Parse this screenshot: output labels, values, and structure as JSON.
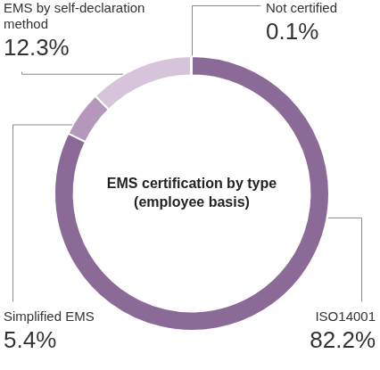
{
  "chart_data": {
    "type": "doughnut",
    "title": "EMS certification by type (employee basis)",
    "categories": [
      "ISO14001",
      "Simplified EMS",
      "EMS by self-declaration method",
      "Not certified"
    ],
    "values": [
      82.2,
      5.4,
      12.3,
      0.1
    ],
    "value_labels": [
      "82.2%",
      "5.4%",
      "12.3%",
      "0.1%"
    ],
    "colors": [
      "#8c6a97",
      "#b497bb",
      "#d6c5da",
      "#e8e0ea"
    ],
    "data_labels": true
  }
}
